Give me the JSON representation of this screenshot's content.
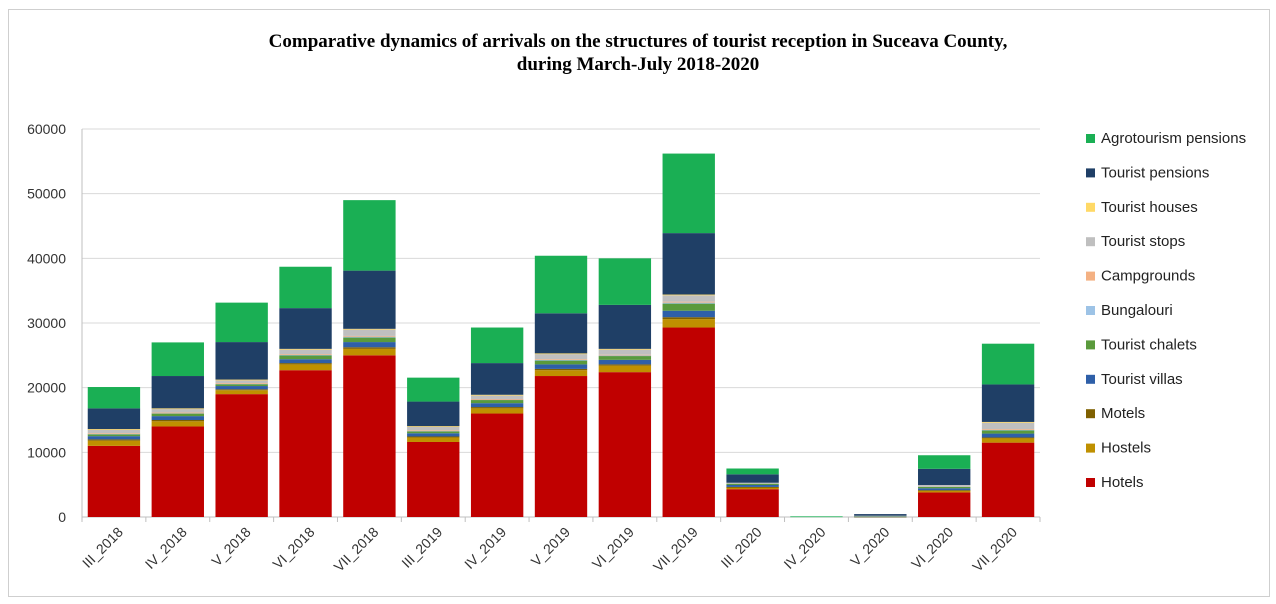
{
  "chart_data": {
    "type": "bar",
    "stacked": true,
    "title_line1": "Comparative dynamics of arrivals on the structures of tourist reception in Suceava County,",
    "title_line2": "during March-July 2018-2020",
    "ylim": [
      0,
      60000
    ],
    "yticks": [
      "0",
      "10000",
      "20000",
      "30000",
      "40000",
      "50000",
      "60000"
    ],
    "grid": true,
    "legend_position": "right",
    "categories": [
      "III_2018",
      "IV_2018",
      "V_2018",
      "VI_2018",
      "VII_2018",
      "III_2019",
      "IV_2019",
      "V_2019",
      "VI_2019",
      "VII_2019",
      "III_2020",
      "IV_2020",
      "V_2020",
      "VI_2020",
      "VII_2020"
    ],
    "series": [
      {
        "name": "Hotels",
        "color": "#c00000",
        "values": [
          11000,
          14000,
          19000,
          22700,
          25000,
          11600,
          16000,
          21800,
          22400,
          29300,
          4300,
          0,
          0,
          3800,
          11500
        ]
      },
      {
        "name": "Hostels",
        "color": "#bf9000",
        "values": [
          800,
          800,
          600,
          900,
          1000,
          700,
          800,
          900,
          1000,
          1300,
          300,
          0,
          0,
          300,
          700
        ]
      },
      {
        "name": "Motels",
        "color": "#7f6000",
        "values": [
          200,
          200,
          150,
          200,
          250,
          150,
          200,
          200,
          200,
          300,
          50,
          0,
          50,
          50,
          100
        ]
      },
      {
        "name": "Tourist villas",
        "color": "#2e5fa8",
        "values": [
          500,
          600,
          500,
          600,
          800,
          500,
          600,
          700,
          700,
          1000,
          300,
          0,
          50,
          300,
          600
        ]
      },
      {
        "name": "Tourist chalets",
        "color": "#5a9a3c",
        "values": [
          300,
          400,
          300,
          600,
          700,
          300,
          500,
          600,
          600,
          1100,
          200,
          0,
          50,
          200,
          500
        ]
      },
      {
        "name": "Bungalouri",
        "color": "#9dc3e6",
        "values": [
          100,
          100,
          100,
          100,
          150,
          100,
          100,
          100,
          100,
          150,
          0,
          0,
          0,
          0,
          100
        ]
      },
      {
        "name": "Campgrounds",
        "color": "#f4b183",
        "values": [
          50,
          50,
          50,
          100,
          100,
          50,
          50,
          100,
          100,
          150,
          0,
          0,
          0,
          0,
          100
        ]
      },
      {
        "name": "Tourist stops",
        "color": "#bfbfbf",
        "values": [
          600,
          600,
          500,
          700,
          1000,
          600,
          600,
          800,
          800,
          1000,
          150,
          0,
          50,
          300,
          1000
        ]
      },
      {
        "name": "Tourist houses",
        "color": "#ffd966",
        "values": [
          50,
          50,
          50,
          100,
          100,
          50,
          50,
          100,
          100,
          100,
          0,
          0,
          0,
          0,
          100
        ]
      },
      {
        "name": "Tourist pensions",
        "color": "#1f3f66",
        "values": [
          3200,
          5000,
          5800,
          6300,
          9000,
          3800,
          4900,
          6200,
          6800,
          9500,
          1300,
          0,
          250,
          2500,
          5800
        ]
      },
      {
        "name": "Agrotourism pensions",
        "color": "#1aaf54",
        "values": [
          3300,
          5200,
          6100,
          6400,
          10900,
          3700,
          5500,
          8900,
          7200,
          12300,
          900,
          100,
          0,
          2100,
          6300
        ]
      }
    ]
  }
}
